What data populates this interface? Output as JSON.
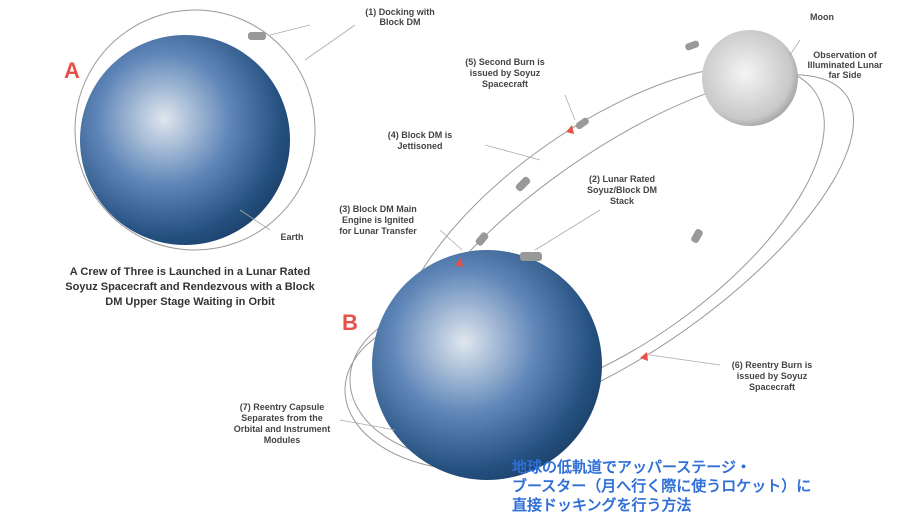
{
  "letters": {
    "a": "A",
    "b": "B"
  },
  "labels": {
    "docking": [
      "(1) Docking with",
      "Block DM"
    ],
    "earth": [
      "Earth"
    ],
    "caption_a": [
      "A Crew of Three is Launched in a Lunar Rated",
      "Soyuz Spacecraft and Rendezvous with a Block",
      "DM Upper Stage Waiting in Orbit"
    ],
    "moon": [
      "Moon"
    ],
    "observation": [
      "Observation of",
      "Illuminated Lunar",
      "far Side"
    ],
    "second_burn": [
      "(5) Second Burn  is",
      "issued by Soyuz",
      "Spacecraft"
    ],
    "jettison": [
      "(4)  Block DM is",
      "Jettisoned"
    ],
    "stack": [
      "(2) Lunar Rated",
      "Soyuz/Block DM",
      "Stack"
    ],
    "ignite": [
      "(3)  Block DM Main",
      "Engine is Ignited",
      "for Lunar Transfer"
    ],
    "reentry_burn": [
      "(6) Reentry Burn is",
      "issued by Soyuz",
      "Spacecraft"
    ],
    "capsule": [
      "(7) Reentry Capsule",
      "Separates from the",
      "Orbital and Instrument",
      "Modules"
    ]
  },
  "japanese": [
    "地球の低軌道でアッパーステージ・",
    "ブースター（月へ行く際に使うロケット）に",
    "直接ドッキングを行う方法"
  ]
}
